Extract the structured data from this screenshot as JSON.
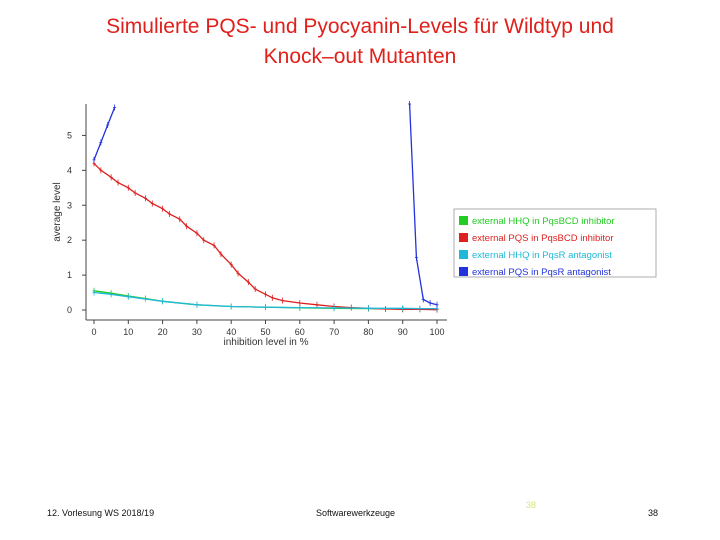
{
  "slide": {
    "title_line1": "Simulierte PQS- und Pyocyanin-Levels für Wildtyp und",
    "title_line2": "Knock–out Mutanten",
    "footer_left": "12. Vorlesung WS 2018/19",
    "footer_center": "Softwarewerkzeuge",
    "footer_mark": "38",
    "page_number": "38"
  },
  "chart_data": {
    "type": "line",
    "xlabel": "inhibition level in %",
    "ylabel": "average level",
    "xlim": [
      -2,
      103
    ],
    "ylim": [
      -0.15,
      5.9
    ],
    "xticks": [
      0,
      10,
      20,
      30,
      40,
      50,
      60,
      70,
      80,
      90,
      100
    ],
    "yticks": [
      0,
      1,
      2,
      3,
      4,
      5
    ],
    "grid": false,
    "legend_position": "right",
    "series": [
      {
        "name": "external HHQ in PqsBCD inhibitor",
        "color": "#22cc22",
        "x": [
          0,
          5,
          10,
          15,
          20,
          30,
          40,
          50,
          60,
          70,
          80,
          90,
          95,
          100
        ],
        "y": [
          0.55,
          0.48,
          0.4,
          0.33,
          0.25,
          0.15,
          0.1,
          0.08,
          0.06,
          0.05,
          0.04,
          0.03,
          0.03,
          0.03
        ]
      },
      {
        "name": "external PQS in PqsBCD inhibitor",
        "color": "#dd2020",
        "x": [
          0,
          2,
          5,
          7,
          10,
          12,
          15,
          17,
          20,
          22,
          25,
          27,
          30,
          32,
          35,
          37,
          40,
          42,
          45,
          47,
          50,
          52,
          55,
          60,
          65,
          70,
          75,
          80,
          85,
          90,
          95,
          100
        ],
        "y": [
          4.2,
          4.0,
          3.8,
          3.65,
          3.5,
          3.35,
          3.2,
          3.05,
          2.9,
          2.75,
          2.6,
          2.4,
          2.2,
          2.0,
          1.85,
          1.6,
          1.3,
          1.05,
          0.8,
          0.6,
          0.45,
          0.35,
          0.27,
          0.2,
          0.15,
          0.1,
          0.07,
          0.05,
          0.03,
          0.02,
          0.02,
          0.01
        ]
      },
      {
        "name": "external HHQ in PqsR antagonist",
        "color": "#20b8d8",
        "x": [
          0,
          5,
          10,
          20,
          30,
          40,
          50,
          60,
          70,
          80,
          90,
          95,
          100
        ],
        "y": [
          0.5,
          0.45,
          0.38,
          0.25,
          0.15,
          0.1,
          0.08,
          0.07,
          0.06,
          0.05,
          0.05,
          0.04,
          0.04
        ]
      },
      {
        "name": "external PQS in PqsR antagonist",
        "color": "#2233dd",
        "x": [
          0,
          2,
          4,
          6
        ],
        "y": [
          4.3,
          4.8,
          5.3,
          5.8
        ],
        "x2": [
          92,
          94,
          96,
          98,
          100
        ],
        "y2": [
          5.9,
          1.5,
          0.3,
          0.2,
          0.15
        ]
      }
    ]
  }
}
